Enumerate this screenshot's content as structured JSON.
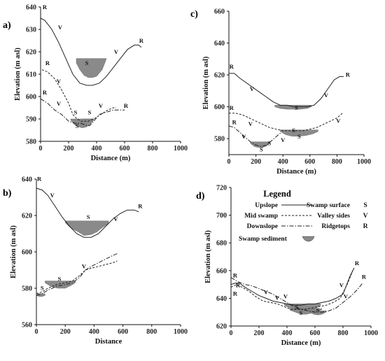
{
  "chart_data": [
    {
      "id": "a",
      "type": "line",
      "panel_label": "a)",
      "xlabel": "Distance (m)",
      "ylabel": "Elevation (m asl)",
      "xlim": [
        0,
        1000
      ],
      "ylim": [
        580,
        640
      ],
      "xticks": [
        0,
        200,
        400,
        600,
        800,
        1000
      ],
      "yticks": [
        580,
        590,
        600,
        610,
        620,
        630,
        640
      ],
      "series": [
        {
          "name": "Upslope",
          "style": "solid",
          "x": [
            0,
            30,
            80,
            130,
            180,
            230,
            280,
            330,
            370,
            420,
            470,
            520,
            570,
            620,
            670,
            700,
            720
          ],
          "y": [
            635,
            634,
            630,
            624,
            617,
            610,
            606,
            605,
            605,
            606,
            609,
            613,
            617,
            621,
            623,
            623,
            622
          ]
        },
        {
          "name": "Mid swamp",
          "style": "dashed",
          "x": [
            10,
            50,
            100,
            150,
            200,
            230,
            260,
            290,
            310,
            340,
            380,
            430,
            480,
            520,
            540
          ],
          "y": [
            612,
            611,
            608,
            603,
            597,
            592,
            590,
            589,
            589,
            589,
            590,
            592,
            594,
            595,
            595
          ]
        },
        {
          "name": "Downslope",
          "style": "dashdot",
          "x": [
            0,
            50,
            100,
            150,
            200,
            250,
            290,
            330,
            350,
            380,
            420,
            470,
            520,
            570,
            600
          ],
          "y": [
            599,
            597,
            594,
            592,
            589,
            588,
            588,
            587,
            587,
            589,
            592,
            593,
            594,
            594,
            594
          ]
        }
      ],
      "sediment": [
        {
          "x": [
            255,
            280,
            310,
            340,
            370,
            400,
            440,
            465,
            470
          ],
          "top": 617,
          "bottom": [
            615,
            612,
            609.5,
            608.5,
            608.5,
            609,
            612,
            616,
            617
          ]
        },
        {
          "x": [
            300,
            320,
            340,
            360,
            380
          ],
          "top": 590,
          "bottom": [
            589.5,
            588.5,
            588,
            588.5,
            589.5
          ]
        },
        {
          "x": [
            215,
            240,
            270,
            300,
            330,
            360,
            380
          ],
          "top": 590,
          "bottom": [
            589.5,
            587.5,
            586.5,
            586,
            586.5,
            588,
            589.5
          ]
        }
      ],
      "annotations": [
        {
          "text": "R",
          "x": 30,
          "y": 639
        },
        {
          "text": "V",
          "x": 140,
          "y": 630
        },
        {
          "text": "S",
          "x": 330,
          "y": 614
        },
        {
          "text": "V",
          "x": 540,
          "y": 619
        },
        {
          "text": "R",
          "x": 720,
          "y": 624
        },
        {
          "text": "R",
          "x": 50,
          "y": 614
        },
        {
          "text": "V",
          "x": 130,
          "y": 606
        },
        {
          "text": "S",
          "x": 250,
          "y": 592
        },
        {
          "text": "S",
          "x": 350,
          "y": 592
        },
        {
          "text": "V",
          "x": 430,
          "y": 595
        },
        {
          "text": "R",
          "x": 30,
          "y": 601
        },
        {
          "text": "V",
          "x": 130,
          "y": 596
        },
        {
          "text": "S",
          "x": 260,
          "y": 586
        },
        {
          "text": "R",
          "x": 610,
          "y": 595
        }
      ]
    },
    {
      "id": "b",
      "type": "line",
      "panel_label": "b)",
      "xlabel": "Distance",
      "ylabel": "Elevation (m asl)",
      "xlim": [
        0,
        1000
      ],
      "ylim": [
        560,
        640
      ],
      "xticks": [
        0,
        200,
        400,
        600,
        800,
        1000
      ],
      "yticks": [
        560,
        580,
        600,
        620,
        640
      ],
      "series": [
        {
          "name": "Upslope",
          "style": "solid",
          "x": [
            0,
            40,
            80,
            130,
            180,
            230,
            280,
            330,
            380,
            430,
            480,
            530,
            580,
            630,
            680,
            710
          ],
          "y": [
            635,
            634,
            631,
            625,
            619,
            614,
            610,
            608,
            608,
            610,
            614,
            618,
            621,
            623,
            623,
            622
          ]
        },
        {
          "name": "Mid swamp",
          "style": "dashed",
          "x": [
            0,
            40,
            80,
            140,
            200,
            250,
            300,
            340,
            380,
            430,
            480,
            530,
            560
          ],
          "y": [
            577,
            578,
            580,
            582,
            583,
            584,
            587,
            590,
            591,
            592,
            593,
            594,
            595
          ]
        },
        {
          "name": "Downslope",
          "style": "dashdot",
          "x": [
            0,
            40,
            80,
            140,
            200,
            250,
            300,
            340,
            380,
            430,
            480,
            530,
            560
          ],
          "y": [
            576,
            577,
            579,
            581,
            582,
            583,
            586,
            590,
            592,
            594,
            596,
            598,
            599
          ]
        }
      ],
      "sediment": [
        {
          "x": [
            200,
            240,
            290,
            330,
            380,
            420,
            460,
            500
          ],
          "top": 617,
          "bottom": [
            616,
            613,
            611,
            609,
            609.5,
            611,
            613.5,
            615.5
          ]
        },
        {
          "x": [
            60,
            100,
            150,
            200,
            240,
            270
          ],
          "top": 584,
          "bottom": [
            583,
            581,
            580,
            580,
            581.5,
            583
          ]
        },
        {
          "x": [
            0,
            20,
            40,
            60
          ],
          "top": 577,
          "bottom": [
            576,
            575.5,
            575.5,
            576
          ]
        }
      ],
      "annotations": [
        {
          "text": "R",
          "x": 20,
          "y": 639
        },
        {
          "text": "V",
          "x": 110,
          "y": 630
        },
        {
          "text": "S",
          "x": 360,
          "y": 618
        },
        {
          "text": "V",
          "x": 550,
          "y": 617
        },
        {
          "text": "R",
          "x": 720,
          "y": 624
        },
        {
          "text": "V",
          "x": 330,
          "y": 591
        },
        {
          "text": "S",
          "x": 160,
          "y": 584
        },
        {
          "text": "S",
          "x": 40,
          "y": 579
        }
      ]
    },
    {
      "id": "c",
      "type": "line",
      "panel_label": "c)",
      "xlabel": "Distance (m)",
      "ylabel": "Elevation (m asl)",
      "xlim": [
        0,
        1000
      ],
      "ylim": [
        570,
        660
      ],
      "xticks": [
        0,
        200,
        400,
        600,
        800,
        1000
      ],
      "yticks": [
        580,
        600,
        620,
        640,
        660
      ],
      "series": [
        {
          "name": "Upslope",
          "style": "solid",
          "x": [
            0,
            40,
            80,
            130,
            180,
            230,
            280,
            330,
            380,
            430,
            480,
            530,
            580,
            630,
            680,
            730,
            780,
            820,
            850
          ],
          "y": [
            621,
            621,
            618,
            615,
            612,
            609,
            606,
            603,
            601,
            601,
            600,
            600,
            600,
            601,
            605,
            611,
            617,
            619,
            619
          ]
        },
        {
          "name": "Mid swamp",
          "style": "dashed",
          "x": [
            0,
            50,
            100,
            150,
            200,
            250,
            300,
            350,
            400,
            450,
            500,
            550,
            600,
            650,
            700,
            750,
            800,
            840
          ],
          "y": [
            596,
            596,
            595,
            593,
            591,
            589,
            587,
            586,
            585,
            585,
            585,
            585,
            586,
            587,
            589,
            591,
            593,
            596
          ]
        },
        {
          "name": "Downslope",
          "style": "dashdot",
          "x": [
            0,
            40,
            80,
            120,
            160,
            200,
            240,
            280,
            320,
            360,
            390
          ],
          "y": [
            588,
            587,
            584,
            581,
            578,
            576,
            575,
            576,
            579,
            582,
            584
          ]
        }
      ],
      "sediment": [
        {
          "x": [
            340,
            380,
            430,
            480,
            530,
            580,
            610
          ],
          "top": 601,
          "bottom": [
            600,
            599,
            598.5,
            598.5,
            598.5,
            599,
            600
          ]
        },
        {
          "x": [
            380,
            420,
            470,
            520,
            570,
            620,
            660
          ],
          "top": 585.5,
          "bottom": [
            584.5,
            582.5,
            581.5,
            581.5,
            582,
            583,
            584.5
          ]
        },
        {
          "x": [
            160,
            190,
            220,
            250,
            280,
            300
          ],
          "top": 578,
          "bottom": [
            577,
            575,
            574.5,
            574.5,
            575.5,
            577
          ]
        }
      ],
      "annotations": [
        {
          "text": "R",
          "x": 20,
          "y": 624
        },
        {
          "text": "V",
          "x": 170,
          "y": 610
        },
        {
          "text": "S",
          "x": 500,
          "y": 598
        },
        {
          "text": "V",
          "x": 720,
          "y": 606
        },
        {
          "text": "R",
          "x": 880,
          "y": 619
        },
        {
          "text": "R",
          "x": 20,
          "y": 598
        },
        {
          "text": "V",
          "x": 160,
          "y": 588
        },
        {
          "text": "S",
          "x": 480,
          "y": 584
        },
        {
          "text": "V",
          "x": 810,
          "y": 590
        },
        {
          "text": "R",
          "x": 40,
          "y": 589
        },
        {
          "text": "V",
          "x": 110,
          "y": 580
        },
        {
          "text": "S",
          "x": 240,
          "y": 572
        },
        {
          "text": "S",
          "x": 300,
          "y": 576
        },
        {
          "text": "V",
          "x": 400,
          "y": 578
        },
        {
          "text": "S",
          "x": 520,
          "y": 580
        }
      ]
    },
    {
      "id": "d",
      "type": "line",
      "panel_label": "d)",
      "xlabel": "Distance (m)",
      "ylabel": "Elevation (m asl)",
      "xlim": [
        0,
        1000
      ],
      "ylim": [
        620,
        720
      ],
      "xticks": [
        0,
        200,
        400,
        600,
        800,
        1000
      ],
      "yticks": [
        620,
        640,
        660,
        680,
        700,
        720
      ],
      "series": [
        {
          "name": "Upslope",
          "style": "solid",
          "x": [
            0,
            30,
            60,
            100,
            150,
            200,
            250,
            300,
            350,
            400,
            450,
            500,
            550,
            600,
            650,
            700,
            750,
            800,
            850,
            880
          ],
          "y": [
            650,
            651,
            651,
            648,
            645,
            642,
            640,
            638,
            637,
            636,
            635,
            635,
            636,
            636,
            637,
            638,
            640,
            643,
            656,
            662
          ]
        },
        {
          "name": "Mid swamp",
          "style": "dashed",
          "x": [
            0,
            40,
            80,
            130,
            180,
            230,
            280,
            330,
            380,
            430,
            480,
            530,
            580,
            630,
            680,
            730,
            780,
            830,
            870
          ],
          "y": [
            648,
            650,
            648,
            645,
            641,
            638,
            637,
            636,
            634,
            632,
            632,
            632,
            633,
            634,
            635,
            637,
            640,
            650,
            660
          ]
        },
        {
          "name": "Downslope",
          "style": "dashdot",
          "x": [
            0,
            50,
            100,
            150,
            200,
            250,
            300,
            350,
            400,
            450,
            500,
            550,
            600,
            650,
            700,
            750,
            800,
            850,
            900,
            940
          ],
          "y": [
            655,
            652,
            650,
            649,
            647,
            645,
            643,
            640,
            637,
            634,
            632,
            631,
            630,
            630,
            631,
            633,
            637,
            641,
            646,
            651
          ]
        }
      ],
      "sediment": [
        {
          "x": [
            380,
            420,
            470,
            520,
            570,
            610,
            640
          ],
          "top": 636,
          "bottom": [
            635,
            633,
            632,
            632,
            632,
            633,
            635
          ]
        },
        {
          "x": [
            420,
            460,
            500,
            540,
            580,
            620,
            650
          ],
          "top": 632.5,
          "bottom": [
            631.5,
            630,
            628.5,
            628.5,
            629.5,
            630.5,
            632
          ]
        },
        {
          "x": [
            560,
            590,
            620,
            650,
            680
          ],
          "top": 631,
          "bottom": [
            630,
            628.5,
            628,
            628.5,
            630
          ]
        }
      ],
      "annotations": [
        {
          "text": "R",
          "x": 30,
          "y": 655
        },
        {
          "text": "R",
          "x": 50,
          "y": 648
        },
        {
          "text": "R",
          "x": 30,
          "y": 642
        },
        {
          "text": "V",
          "x": 250,
          "y": 643
        },
        {
          "text": "V",
          "x": 330,
          "y": 639
        },
        {
          "text": "V",
          "x": 390,
          "y": 640
        },
        {
          "text": "S",
          "x": 470,
          "y": 632
        },
        {
          "text": "S",
          "x": 500,
          "y": 628
        },
        {
          "text": "S",
          "x": 620,
          "y": 630
        },
        {
          "text": "V",
          "x": 790,
          "y": 648
        },
        {
          "text": "V",
          "x": 820,
          "y": 640
        },
        {
          "text": "R",
          "x": 900,
          "y": 664
        },
        {
          "text": "R",
          "x": 950,
          "y": 654
        }
      ]
    }
  ],
  "legend": {
    "title": "Legend",
    "rows": [
      {
        "label": "Upslope",
        "style": "solid",
        "desc": "Swamp surface",
        "symbol": "S"
      },
      {
        "label": "Mid swamp",
        "style": "dashed",
        "desc": "Valley sides",
        "symbol": "V"
      },
      {
        "label": "Downslope",
        "style": "dashdot",
        "desc": "Ridgetops",
        "symbol": "R"
      }
    ],
    "sediment_label": "Swamp sediment"
  },
  "colors": {
    "line": "#222222",
    "sediment": "#8a8a8a",
    "axis": "#111111",
    "background": "#ffffff"
  }
}
